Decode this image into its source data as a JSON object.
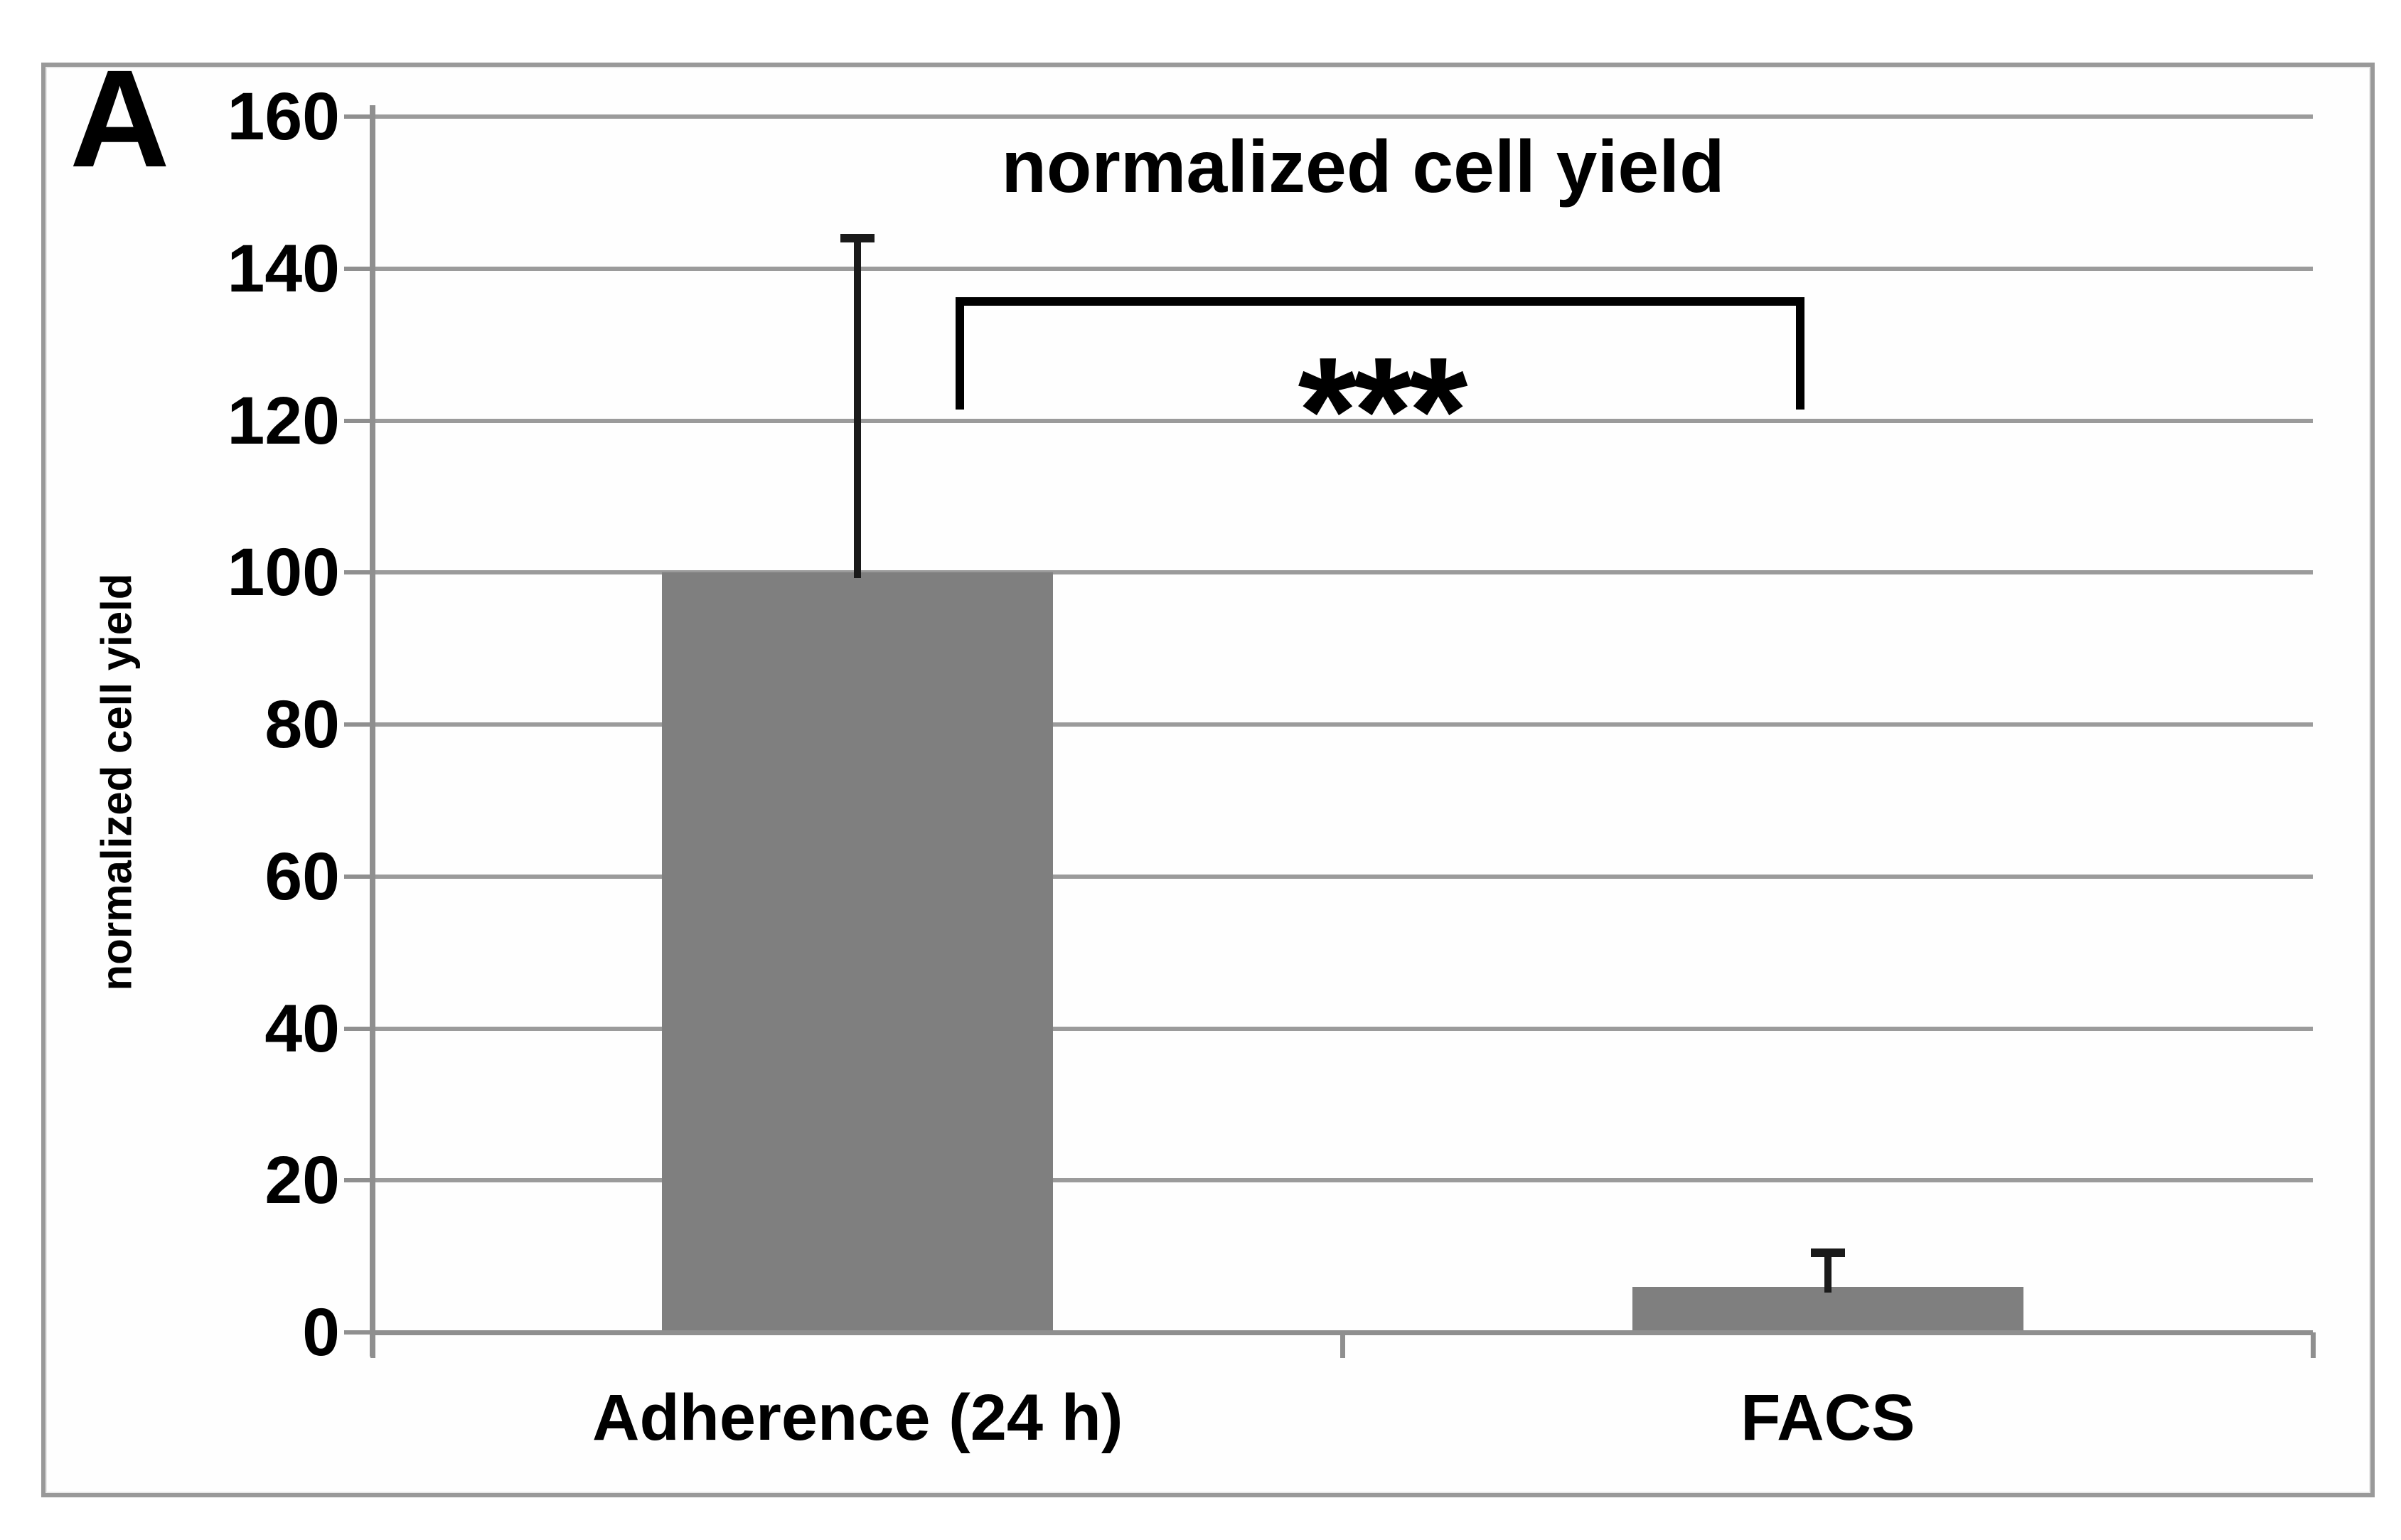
{
  "panel_label": "A",
  "title": "normalized cell yield",
  "significance_label": "***",
  "chart_data": {
    "type": "bar",
    "title": "normalized cell yield",
    "xlabel": "",
    "ylabel": "normalized cell yield",
    "categories": [
      "Adherence (24 h)",
      "FACS"
    ],
    "values": [
      100,
      6
    ],
    "error_bar_tops": [
      144,
      10.5
    ],
    "yticks": [
      0,
      20,
      40,
      60,
      80,
      100,
      120,
      140,
      160
    ],
    "ylim": [
      0,
      160
    ],
    "grid": true,
    "legend": "none",
    "significance": {
      "label": "***",
      "between": [
        "Adherence (24 h)",
        "FACS"
      ]
    },
    "bar_color": "#7f7f7f",
    "grid_color": "#9b9b9b",
    "axis_color": "#8f8f8f",
    "error_bar_color": "#1a1a1a"
  }
}
